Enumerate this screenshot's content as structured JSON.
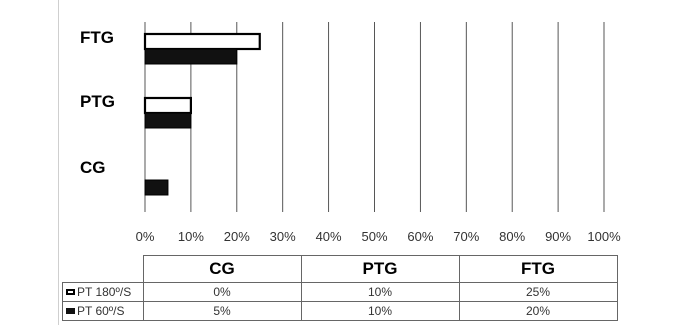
{
  "chart_data": {
    "type": "bar",
    "orientation": "horizontal",
    "categories": [
      "FTG",
      "PTG",
      "CG"
    ],
    "series": [
      {
        "name": "PT 180º/S",
        "values": [
          25,
          10,
          0
        ],
        "color": "#ffffff"
      },
      {
        "name": "PT 60º/S",
        "values": [
          20,
          10,
          5
        ],
        "color": "#111111"
      }
    ],
    "xlim": [
      0,
      100
    ],
    "x_ticks": [
      "0%",
      "10%",
      "20%",
      "30%",
      "40%",
      "50%",
      "60%",
      "70%",
      "80%",
      "90%",
      "100%"
    ],
    "grid": true,
    "legend": "data-table"
  },
  "table": {
    "headers": [
      "CG",
      "PTG",
      "FTG"
    ],
    "rows": [
      {
        "label": "PT 180º/S",
        "swatch": "white",
        "cells": [
          "0%",
          "10%",
          "25%"
        ]
      },
      {
        "label": "PT 60º/S",
        "swatch": "black",
        "cells": [
          "5%",
          "10%",
          "20%"
        ]
      }
    ]
  }
}
